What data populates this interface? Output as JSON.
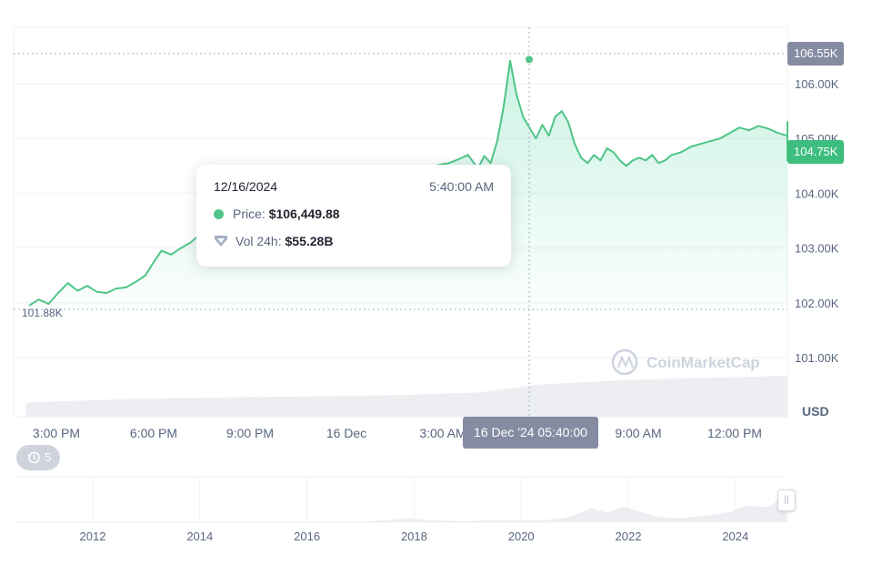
{
  "chart_data": {
    "type": "line",
    "currency_label": "USD",
    "watermark": "CoinMarketCap",
    "y_axis": {
      "range": [
        100500,
        106900
      ],
      "ticks": [
        {
          "value": 106000,
          "label": "106.00K"
        },
        {
          "value": 105000,
          "label": "105.00K"
        },
        {
          "value": 104000,
          "label": "104.00K"
        },
        {
          "value": 103000,
          "label": "103.00K"
        },
        {
          "value": 102000,
          "label": "102.00K"
        },
        {
          "value": 101000,
          "label": "101.00K"
        }
      ]
    },
    "x_axis": {
      "ticks": [
        "3:00 PM",
        "6:00 PM",
        "9:00 PM",
        "16 Dec",
        "3:00 AM",
        "9:00 AM",
        "12:00 PM"
      ]
    },
    "reference_lines": {
      "high": {
        "value": 106550,
        "label": "106.55K"
      },
      "low": {
        "value": 101880,
        "label": "101.88K"
      }
    },
    "current_price": {
      "value": 104750,
      "label": "104.75K"
    },
    "hover": {
      "x_label": "16 Dec '24 05:40:00",
      "date": "12/16/2024",
      "time": "5:40:00 AM",
      "price_label": "Price:",
      "price_value": "$106,449.88",
      "volume_label": "Vol 24h:",
      "volume_value": "$55.28B"
    },
    "series_price": {
      "hours_from_first_tick": [
        -0.9,
        -0.6,
        -0.3,
        0.0,
        0.3,
        0.6,
        0.9,
        1.2,
        1.5,
        1.8,
        2.1,
        2.4,
        2.7,
        3.0,
        3.2,
        3.5,
        3.8,
        4.1,
        4.4,
        4.7,
        5.0,
        5.3,
        5.6,
        5.9,
        6.2,
        6.5,
        6.8,
        7.1,
        7.4,
        7.7,
        8.0,
        8.2,
        8.5,
        8.8,
        9.1,
        9.4,
        9.7,
        10.0,
        10.3,
        10.6,
        10.9,
        11.2,
        11.5,
        11.8,
        12.1,
        12.4,
        12.7,
        13.0,
        13.2,
        13.4,
        13.6,
        13.8,
        14.0,
        14.2,
        14.4,
        14.6,
        14.8,
        15.0,
        15.2,
        15.4,
        15.6,
        15.8,
        16.0,
        16.2,
        16.4,
        16.6,
        16.8,
        17.0,
        17.2,
        17.4,
        17.6,
        17.8,
        18.0,
        18.2,
        18.4,
        18.6,
        18.8,
        19.0,
        19.3,
        19.6,
        19.9,
        20.2,
        20.5,
        20.8,
        21.1,
        21.4,
        21.7,
        22.0,
        22.3,
        22.6,
        22.9,
        23.2,
        23.5,
        23.8,
        24.0,
        24.3,
        24.6,
        24.9,
        25.2,
        25.5,
        25.8,
        26.1,
        26.4,
        26.7,
        27.0,
        27.3,
        27.6,
        27.9,
        28.2,
        28.5,
        28.8,
        29.1,
        29.4
      ],
      "price": [
        101950,
        102060,
        101980,
        102180,
        102360,
        102220,
        102310,
        102200,
        102180,
        102260,
        102280,
        102380,
        102500,
        102780,
        102950,
        102880,
        103000,
        103100,
        103250,
        102980,
        102850,
        102950,
        102760,
        102700,
        102900,
        102980,
        103050,
        103200,
        103350,
        103500,
        103600,
        103700,
        103800,
        103900,
        103980,
        104050,
        104100,
        104150,
        104200,
        104260,
        104300,
        104380,
        104460,
        104520,
        104550,
        104620,
        104700,
        104450,
        104680,
        104550,
        104950,
        105580,
        106420,
        105800,
        105400,
        105200,
        105000,
        105250,
        105050,
        105400,
        105500,
        105300,
        104900,
        104650,
        104550,
        104700,
        104600,
        104820,
        104750,
        104600,
        104500,
        104600,
        104650,
        104600,
        104700,
        104550,
        104600,
        104700,
        104750,
        104850,
        104900,
        104950,
        105000,
        105100,
        105200,
        105150,
        105230,
        105180,
        105100,
        105050,
        105200,
        105300,
        105100,
        105000,
        104900,
        104850,
        104800,
        104750,
        104700,
        104750,
        104700,
        104650,
        104600,
        104700,
        104750,
        104800,
        104850,
        104900,
        104950,
        104800,
        104700,
        104800,
        104750
      ]
    },
    "series_volume": {
      "hours_from_first_tick": [
        -1.0,
        2.0,
        5.0,
        8.0,
        11.0,
        13.0,
        15.0,
        18.0,
        21.0,
        24.0,
        27.0,
        29.5
      ],
      "volume_billion": [
        45.0,
        46.2,
        46.8,
        47.2,
        47.8,
        48.6,
        51.5,
        53.2,
        54.0,
        54.5,
        55.0,
        55.4
      ]
    },
    "navigator": {
      "year_ticks": [
        "2012",
        "2014",
        "2016",
        "2018",
        "2020",
        "2022",
        "2024"
      ],
      "years": [
        2010.6,
        2011.5,
        2012.5,
        2013.5,
        2014.5,
        2015.5,
        2016.5,
        2017.0,
        2017.5,
        2017.9,
        2018.2,
        2018.6,
        2019.0,
        2019.5,
        2019.9,
        2020.3,
        2020.8,
        2021.0,
        2021.3,
        2021.6,
        2021.9,
        2022.2,
        2022.6,
        2023.0,
        2023.5,
        2023.9,
        2024.2,
        2024.6,
        2024.95
      ],
      "price_thousand": [
        0.1,
        0.5,
        1,
        0.6,
        0.4,
        0.3,
        0.8,
        2,
        8,
        17,
        9,
        6,
        4,
        9,
        8,
        7,
        16,
        30,
        58,
        40,
        62,
        45,
        20,
        17,
        28,
        42,
        68,
        62,
        104
      ]
    },
    "history_count": "5"
  }
}
